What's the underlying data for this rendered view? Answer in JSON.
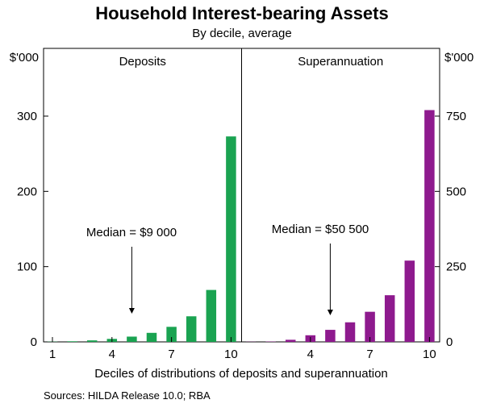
{
  "chart_data": {
    "type": "bar",
    "title": "Household Interest-bearing Assets",
    "subtitle": "By decile, average",
    "xlabel": "Deciles of distributions of deposits and superannuation",
    "source": "Sources: HILDA Release 10.0; RBA",
    "colors": {
      "deposits": "#1aa351",
      "superannuation": "#8e1a8e",
      "frame": "#000000"
    },
    "panels": [
      {
        "name": "Deposits",
        "axis_side": "left",
        "unit_label": "$'000",
        "ylim": [
          0,
          390
        ],
        "yticks": [
          0,
          100,
          200,
          300
        ],
        "categories": [
          1,
          2,
          3,
          4,
          5,
          6,
          7,
          8,
          9,
          10
        ],
        "xtick_labels": [
          "1",
          "4",
          "7",
          "10"
        ],
        "xtick_values": [
          1,
          4,
          7,
          10
        ],
        "values": [
          0.3,
          0.8,
          2,
          4,
          7,
          12,
          20,
          34,
          69,
          273
        ],
        "annotation": {
          "text": "Median = $9 000",
          "arrow_at_decile": 5
        }
      },
      {
        "name": "Superannuation",
        "axis_side": "right",
        "unit_label": "$'000",
        "ylim": [
          0,
          975
        ],
        "yticks": [
          0,
          250,
          500,
          750
        ],
        "categories": [
          1,
          2,
          3,
          4,
          5,
          6,
          7,
          8,
          9,
          10
        ],
        "xtick_labels": [
          "4",
          "7",
          "10"
        ],
        "xtick_values": [
          4,
          7,
          10
        ],
        "values": [
          0.5,
          1,
          7,
          22,
          40,
          65,
          100,
          155,
          270,
          770
        ],
        "annotation": {
          "text": "Median = $50 500",
          "arrow_at_decile": 5
        }
      }
    ]
  }
}
